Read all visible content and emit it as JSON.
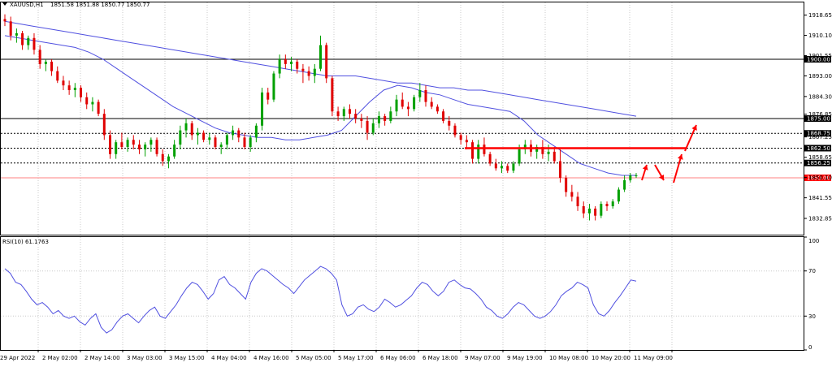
{
  "chart_data": {
    "type": "candlestick",
    "header": {
      "symbol": "XAUUSD,H1",
      "ohlc": "1851.58 1851.88 1850.77 1850.77"
    },
    "price_axis": {
      "ylim": [
        1826,
        1924
      ],
      "ticks": [
        "1918.65",
        "1910.10",
        "1901.55",
        "1893.00",
        "1884.30",
        "1876.85",
        "1867.25",
        "1858.65",
        "1850.10",
        "1841.55",
        "1832.85"
      ],
      "hlines": [
        {
          "value": 1900.0,
          "label": "1900.00",
          "style": "solid",
          "color": "#000000"
        },
        {
          "value": 1875.0,
          "label": "1875.00",
          "style": "solid",
          "color": "#000000"
        },
        {
          "value": 1868.75,
          "label": "1868.75",
          "style": "dashed",
          "color": "#000000"
        },
        {
          "value": 1862.5,
          "label": "1862.50",
          "style": "dashed",
          "color": "#000000"
        },
        {
          "value": 1856.25,
          "label": "1856.25",
          "style": "dashed",
          "color": "#000000"
        },
        {
          "value": 1850.0,
          "label": "1850.00",
          "style": "solid",
          "color": "#ff8080"
        }
      ],
      "resistance": {
        "value": 1862.5,
        "color": "#ff0000"
      }
    },
    "time_axis": {
      "labels": [
        "29 Apr 2022",
        "2 May 02:00",
        "2 May 14:00",
        "3 May 03:00",
        "3 May 15:00",
        "4 May 04:00",
        "4 May 16:00",
        "5 May 05:00",
        "5 May 17:00",
        "6 May 06:00",
        "6 May 18:00",
        "9 May 07:00",
        "9 May 19:00",
        "10 May 08:00",
        "10 May 20:00",
        "11 May 09:00"
      ]
    },
    "candles": [
      [
        1917,
        1919,
        1914,
        1916
      ],
      [
        1916,
        1918,
        1908,
        1910
      ],
      [
        1910,
        1913,
        1907,
        1911
      ],
      [
        1911,
        1912,
        1904,
        1906
      ],
      [
        1906,
        1910,
        1904,
        1909
      ],
      [
        1909,
        1911,
        1902,
        1904
      ],
      [
        1904,
        1906,
        1896,
        1898
      ],
      [
        1898,
        1900,
        1895,
        1899
      ],
      [
        1899,
        1900,
        1893,
        1895
      ],
      [
        1895,
        1897,
        1890,
        1891
      ],
      [
        1891,
        1893,
        1887,
        1889
      ],
      [
        1889,
        1891,
        1885,
        1887
      ],
      [
        1887,
        1890,
        1884,
        1888
      ],
      [
        1888,
        1889,
        1882,
        1884
      ],
      [
        1884,
        1886,
        1879,
        1881
      ],
      [
        1881,
        1884,
        1878,
        1882
      ],
      [
        1882,
        1883,
        1876,
        1877
      ],
      [
        1877,
        1879,
        1866,
        1868
      ],
      [
        1868,
        1870,
        1858,
        1860
      ],
      [
        1860,
        1866,
        1858,
        1865
      ],
      [
        1865,
        1869,
        1862,
        1863
      ],
      [
        1863,
        1867,
        1861,
        1866
      ],
      [
        1866,
        1868,
        1862,
        1864
      ],
      [
        1864,
        1866,
        1860,
        1862
      ],
      [
        1862,
        1865,
        1859,
        1864
      ],
      [
        1864,
        1867,
        1861,
        1866
      ],
      [
        1866,
        1867,
        1859,
        1860
      ],
      [
        1860,
        1862,
        1855,
        1857
      ],
      [
        1857,
        1860,
        1854,
        1859
      ],
      [
        1859,
        1866,
        1858,
        1864
      ],
      [
        1864,
        1872,
        1862,
        1870
      ],
      [
        1870,
        1875,
        1867,
        1873
      ],
      [
        1873,
        1874,
        1866,
        1868
      ],
      [
        1868,
        1871,
        1864,
        1869
      ],
      [
        1869,
        1870,
        1865,
        1866
      ],
      [
        1866,
        1869,
        1864,
        1867
      ],
      [
        1867,
        1868,
        1862,
        1863
      ],
      [
        1863,
        1865,
        1860,
        1864
      ],
      [
        1864,
        1869,
        1862,
        1868
      ],
      [
        1868,
        1872,
        1866,
        1870
      ],
      [
        1870,
        1871,
        1865,
        1867
      ],
      [
        1867,
        1869,
        1862,
        1863
      ],
      [
        1863,
        1868,
        1861,
        1867
      ],
      [
        1867,
        1873,
        1865,
        1872
      ],
      [
        1872,
        1888,
        1870,
        1886
      ],
      [
        1886,
        1888,
        1881,
        1883
      ],
      [
        1883,
        1895,
        1882,
        1894
      ],
      [
        1894,
        1902,
        1892,
        1900
      ],
      [
        1900,
        1902,
        1896,
        1898
      ],
      [
        1898,
        1901,
        1895,
        1899
      ],
      [
        1899,
        1900,
        1894,
        1896
      ],
      [
        1896,
        1898,
        1890,
        1895
      ],
      [
        1895,
        1897,
        1891,
        1893
      ],
      [
        1893,
        1898,
        1890,
        1896
      ],
      [
        1896,
        1910,
        1895,
        1906
      ],
      [
        1906,
        1907,
        1890,
        1892
      ],
      [
        1892,
        1893,
        1876,
        1878
      ],
      [
        1878,
        1880,
        1874,
        1876
      ],
      [
        1876,
        1880,
        1874,
        1879
      ],
      [
        1879,
        1881,
        1875,
        1877
      ],
      [
        1877,
        1879,
        1873,
        1875
      ],
      [
        1875,
        1877,
        1871,
        1874
      ],
      [
        1874,
        1876,
        1866,
        1869
      ],
      [
        1869,
        1875,
        1868,
        1873
      ],
      [
        1873,
        1878,
        1871,
        1876
      ],
      [
        1876,
        1877,
        1872,
        1874
      ],
      [
        1874,
        1880,
        1873,
        1878
      ],
      [
        1878,
        1885,
        1876,
        1883
      ],
      [
        1883,
        1886,
        1879,
        1880
      ],
      [
        1880,
        1882,
        1876,
        1879
      ],
      [
        1879,
        1885,
        1878,
        1884
      ],
      [
        1884,
        1890,
        1882,
        1887
      ],
      [
        1887,
        1889,
        1880,
        1882
      ],
      [
        1882,
        1884,
        1879,
        1880
      ],
      [
        1880,
        1881,
        1877,
        1878
      ],
      [
        1878,
        1879,
        1873,
        1874
      ],
      [
        1874,
        1876,
        1870,
        1872
      ],
      [
        1872,
        1873,
        1867,
        1868
      ],
      [
        1868,
        1869,
        1864,
        1866
      ],
      [
        1866,
        1868,
        1862,
        1865
      ],
      [
        1865,
        1866,
        1856,
        1858
      ],
      [
        1858,
        1866,
        1856,
        1864
      ],
      [
        1864,
        1867,
        1859,
        1860
      ],
      [
        1860,
        1861,
        1855,
        1856
      ],
      [
        1856,
        1858,
        1853,
        1854
      ],
      [
        1854,
        1857,
        1852,
        1855
      ],
      [
        1855,
        1856,
        1852,
        1853
      ],
      [
        1853,
        1857,
        1852,
        1856
      ],
      [
        1856,
        1864,
        1855,
        1862
      ],
      [
        1862,
        1866,
        1860,
        1864
      ],
      [
        1864,
        1866,
        1859,
        1861
      ],
      [
        1861,
        1864,
        1858,
        1863
      ],
      [
        1863,
        1866,
        1858,
        1860
      ],
      [
        1860,
        1864,
        1857,
        1861
      ],
      [
        1861,
        1863,
        1856,
        1857
      ],
      [
        1857,
        1862,
        1848,
        1850
      ],
      [
        1850,
        1851,
        1842,
        1844
      ],
      [
        1844,
        1847,
        1840,
        1842
      ],
      [
        1842,
        1844,
        1836,
        1838
      ],
      [
        1838,
        1840,
        1833,
        1835
      ],
      [
        1835,
        1839,
        1832,
        1837
      ],
      [
        1837,
        1838,
        1832,
        1834
      ],
      [
        1834,
        1840,
        1833,
        1839
      ],
      [
        1839,
        1840,
        1836,
        1838
      ],
      [
        1838,
        1841,
        1837,
        1840
      ],
      [
        1840,
        1846,
        1839,
        1845
      ],
      [
        1845,
        1851,
        1844,
        1849
      ],
      [
        1849,
        1852,
        1848,
        1851
      ],
      [
        1851,
        1852,
        1850,
        1851
      ]
    ],
    "ma_fast": [
      1910,
      1909,
      1908,
      1907,
      1906,
      1905,
      1903,
      1900,
      1896,
      1892,
      1888,
      1884,
      1880,
      1877,
      1874,
      1871,
      1869,
      1868,
      1867,
      1867,
      1866,
      1866,
      1867,
      1868,
      1870,
      1876,
      1882,
      1887,
      1889,
      1888,
      1886,
      1885,
      1883,
      1881,
      1880,
      1879,
      1878,
      1874,
      1868,
      1864,
      1860,
      1856,
      1854,
      1852,
      1851,
      1851
    ],
    "ma_slow": [
      1916,
      1915,
      1914,
      1913,
      1912,
      1911,
      1910,
      1909,
      1908,
      1907,
      1906,
      1905,
      1904,
      1903,
      1902,
      1901,
      1900,
      1899,
      1898,
      1897,
      1896,
      1895,
      1894,
      1893,
      1893,
      1893,
      1892,
      1891,
      1890,
      1890,
      1889,
      1888,
      1888,
      1887,
      1887,
      1886,
      1885,
      1884,
      1883,
      1882,
      1881,
      1880,
      1879,
      1878,
      1877,
      1876
    ],
    "arrows": "projection arrows (red)",
    "rsi": {
      "label": "RSI(10) 61.1763",
      "ticks": [
        "100",
        "70",
        "30",
        "0"
      ],
      "levels": [
        70,
        30
      ],
      "values": [
        72,
        68,
        60,
        58,
        52,
        45,
        40,
        42,
        38,
        32,
        35,
        30,
        28,
        30,
        25,
        22,
        28,
        32,
        20,
        15,
        18,
        25,
        30,
        32,
        28,
        24,
        30,
        35,
        38,
        30,
        28,
        34,
        40,
        48,
        55,
        60,
        58,
        52,
        45,
        50,
        62,
        65,
        58,
        55,
        50,
        45,
        60,
        68,
        72,
        70,
        66,
        62,
        58,
        55,
        50,
        56,
        62,
        66,
        70,
        74,
        72,
        68,
        62,
        40,
        30,
        32,
        38,
        40,
        36,
        34,
        38,
        45,
        42,
        38,
        40,
        44,
        48,
        55,
        60,
        58,
        52,
        48,
        52,
        60,
        62,
        58,
        55,
        54,
        50,
        45,
        38,
        35,
        30,
        28,
        32,
        38,
        42,
        40,
        35,
        30,
        28,
        30,
        34,
        40,
        48,
        52,
        55,
        60,
        58,
        55,
        40,
        32,
        30,
        35,
        42,
        48,
        55,
        62,
        61
      ]
    }
  }
}
